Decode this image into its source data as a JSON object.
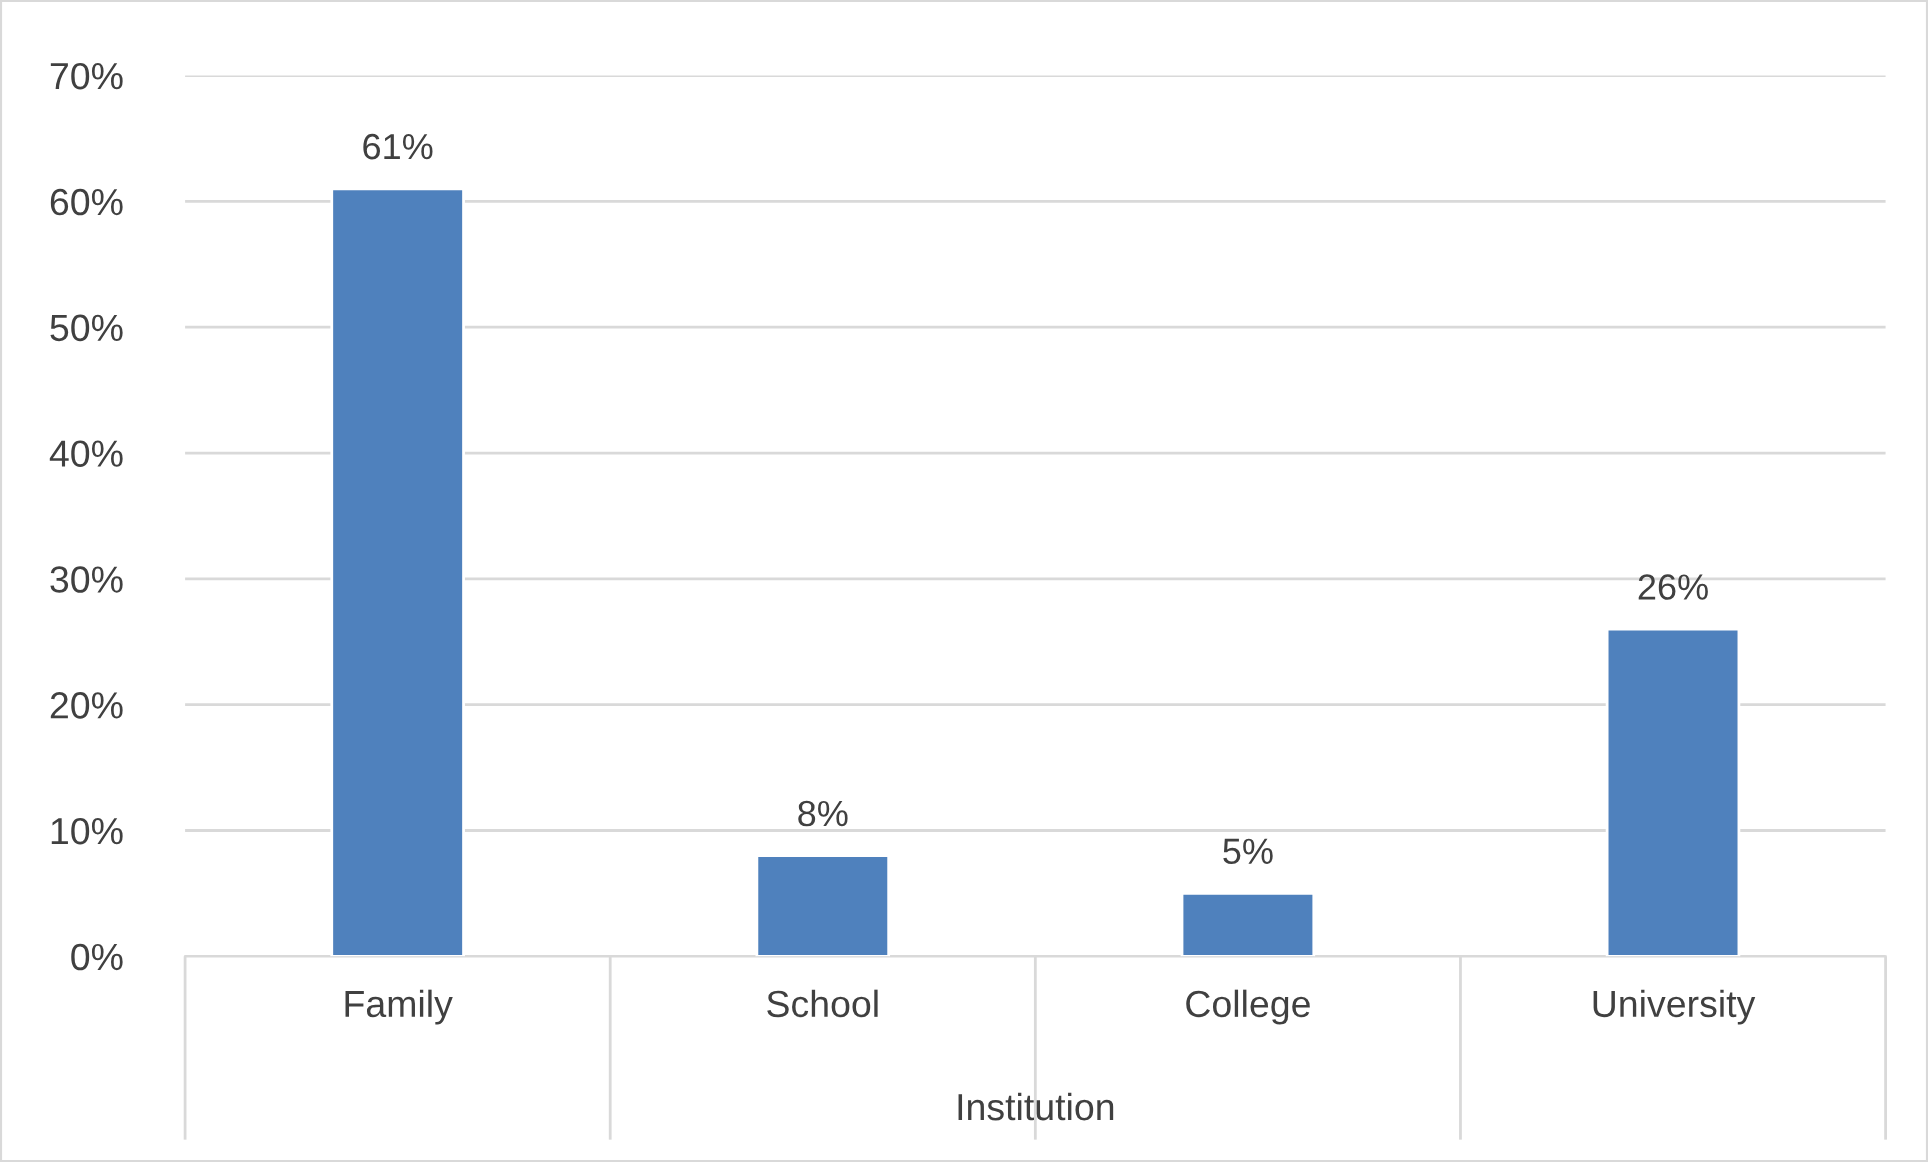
{
  "chart_data": {
    "type": "bar",
    "xlabel": "Institution",
    "categories": [
      "Family",
      "School",
      "College",
      "University"
    ],
    "values": [
      61,
      8,
      5,
      26
    ],
    "color": "#4f81bd",
    "value_labels": [
      "61%",
      "8%",
      "5%",
      "26%"
    ],
    "ylim": [
      0,
      70
    ],
    "yticks": [
      {
        "value": 0,
        "label": "0%"
      },
      {
        "value": 10,
        "label": "10%"
      },
      {
        "value": 20,
        "label": "20%"
      },
      {
        "value": 30,
        "label": "30%"
      },
      {
        "value": 40,
        "label": "40%"
      },
      {
        "value": 50,
        "label": "50%"
      },
      {
        "value": 60,
        "label": "60%"
      },
      {
        "value": 70,
        "label": "70%"
      }
    ],
    "grid": "y",
    "legend": false
  }
}
